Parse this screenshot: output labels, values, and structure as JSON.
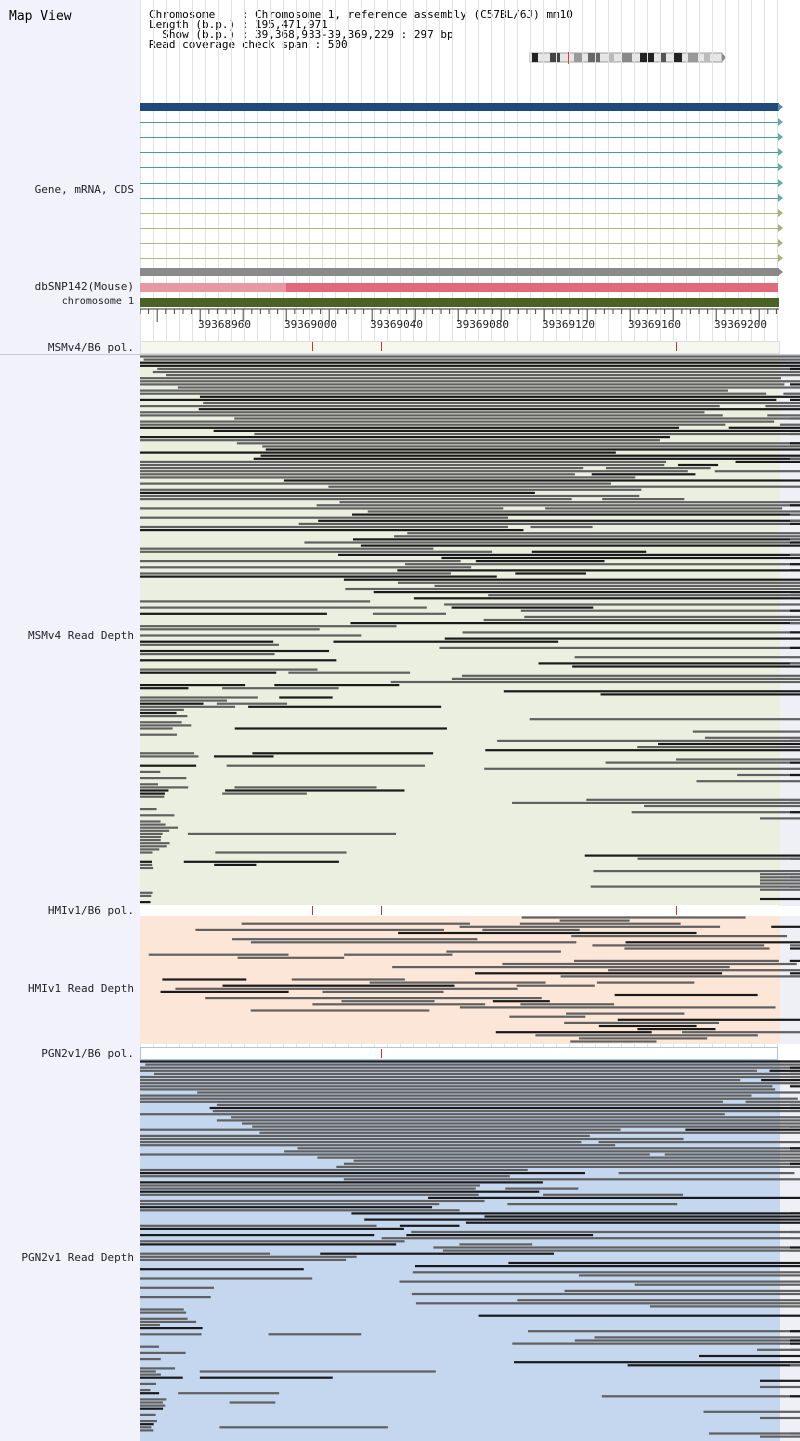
{
  "app": {
    "title": "Map View"
  },
  "info": {
    "line1": "Chromosome    : Chromosome 1, reference assembly (C57BL/6J) mm10",
    "line2": "Length (b.p.) : 195,471,971",
    "line3": "  Show (b.p.) : 39,368,933-39,369,229 : 297 bp",
    "line4": "Read coverage check span : 500"
  },
  "tracks": {
    "gene": "Gene, mRNA, CDS",
    "dbsnp": "dbSNP142(Mouse)",
    "chrom": "chromosome 1",
    "msm_pol": "MSMv4/B6 pol.",
    "msm_depth": "MSMv4 Read Depth",
    "hmi_pol": "HMIv1/B6 pol.",
    "hmi_depth": "HMIv1 Read Depth",
    "pgn_pol": "PGN2v1/B6 pol.",
    "pgn_depth": "PGN2v1 Read Depth"
  },
  "ruler": {
    "ticks": [
      "39368960",
      "39369000",
      "39369040",
      "39369080",
      "39369120",
      "39369160",
      "39369200"
    ]
  },
  "colors": {
    "gene_main": "#1f4a7d",
    "gene_teal": "#4a9a9a",
    "gene_olive": "#b3b37a",
    "gene_gray": "#8a8a8a",
    "snp_light": "#ea97a4",
    "snp": "#e06a7a",
    "chrom_bar": "#4a6323",
    "msm_bg": "#ebefe0",
    "hmi_bg": "#fbe6d8",
    "pgn_bg": "#c5d6ef",
    "read_dark": "#1a1a1a",
    "read_gray": "#606060",
    "pol_mark": "#c0392b"
  }
}
